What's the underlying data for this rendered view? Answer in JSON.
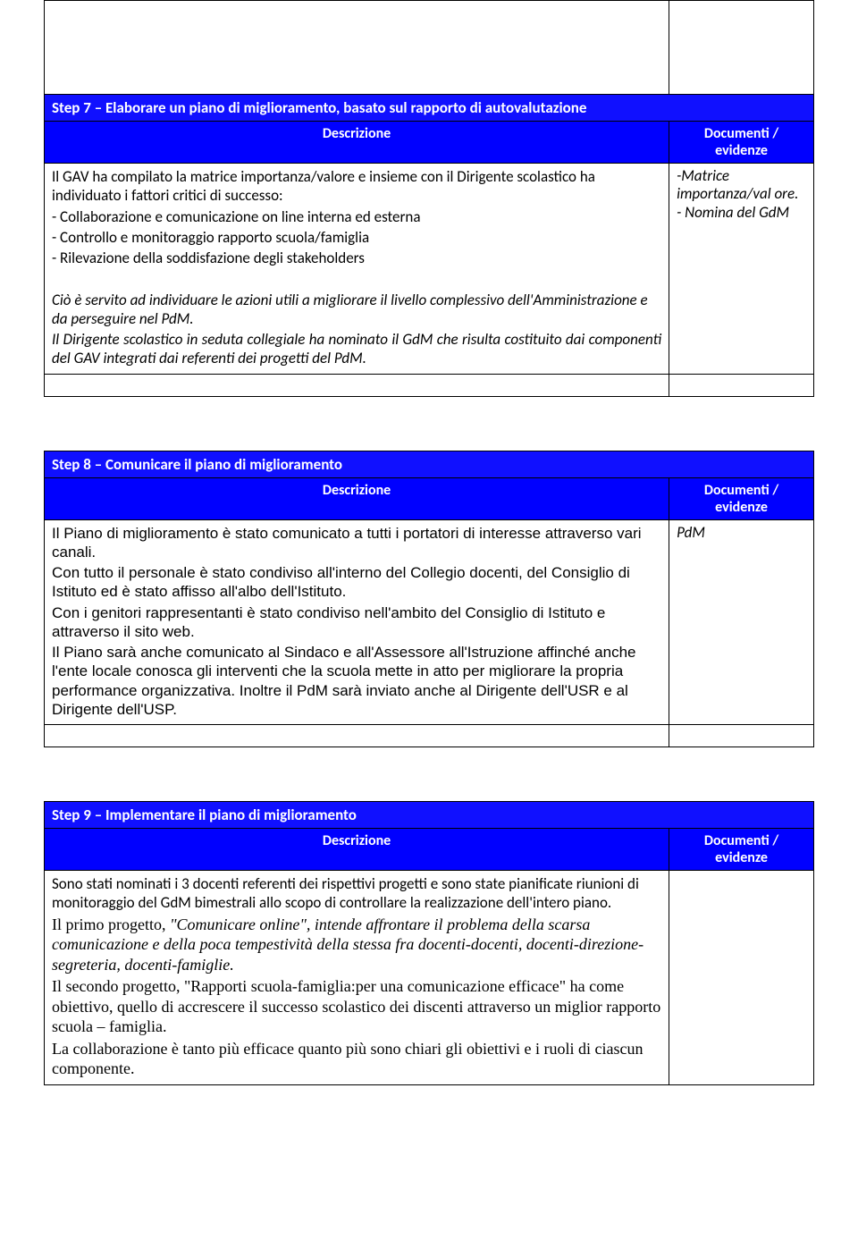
{
  "step7": {
    "title": "Step 7 – Elaborare un piano di miglioramento, basato sul rapporto di autovalutazione",
    "desc_label": "Descrizione",
    "doc_label": "Documenti / evidenze",
    "p1": "Il GAV ha compilato la matrice importanza/valore e insieme con il Dirigente scolastico ha  individuato i fattori critici di successo:",
    "li1": "- Collaborazione e comunicazione on line interna ed esterna",
    "li2": "- Controllo e monitoraggio  rapporto  scuola/famiglia",
    "li3": "- Rilevazione della soddisfazione degli stakeholders",
    "p2": " Ciò è servito ad individuare le azioni utili a  migliorare il livello complessivo dell'Amministrazione e da perseguire nel PdM.",
    "p3": "Il Dirigente scolastico in seduta collegiale ha nominato il GdM che risulta costituito dai componenti del GAV integrati dai referenti dei progetti del PdM.",
    "side1": "-Matrice importanza/val ore.",
    "side2": "- Nomina del GdM"
  },
  "step8": {
    "title": "Step 8 – Comunicare il piano di miglioramento",
    "desc_label": "Descrizione",
    "doc_label": "Documenti / evidenze",
    "p1": "Il Piano di miglioramento è stato comunicato a tutti i portatori di interesse attraverso vari canali.",
    "p2": "Con tutto il personale è stato condiviso all'interno del Collegio docenti, del Consiglio di Istituto ed è stato affisso all'albo dell'Istituto.",
    "p3": "Con i genitori rappresentanti è stato condiviso nell'ambito del Consiglio di Istituto e attraverso il sito web.",
    "p4": "Il Piano sarà anche comunicato al Sindaco e all'Assessore all'Istruzione affinché anche l'ente locale conosca gli interventi che la scuola mette in atto per migliorare la propria performance organizzativa. Inoltre il PdM sarà inviato anche al Dirigente dell'USR e al Dirigente dell'USP.",
    "side1": "PdM"
  },
  "step9": {
    "title": "Step 9 – Implementare il piano di miglioramento",
    "desc_label": "Descrizione",
    "doc_label": "Documenti / evidenze",
    "p1": "Sono stati nominati i 3 docenti referenti dei rispettivi progetti e sono state pianificate riunioni di monitoraggio del GdM bimestrali allo scopo di controllare la realizzazione dell'intero piano.",
    "p2a": "Il primo progetto,",
    "p2b": " \"Comunicare online\", intende affrontare il problema della scarsa comunicazione e della poca tempestività della stessa fra docenti-docenti, docenti-direzione-segreteria, docenti-famiglie.",
    "p3": " Il secondo progetto, \"Rapporti scuola-famiglia:per una comunicazione efficace\" ha  come obiettivo, quello di accrescere il successo scolastico dei discenti attraverso un miglior rapporto scuola – famiglia.",
    "p4": "La collaborazione è tanto più efficace quanto più sono chiari gli obiettivi e i ruoli di ciascun componente."
  }
}
